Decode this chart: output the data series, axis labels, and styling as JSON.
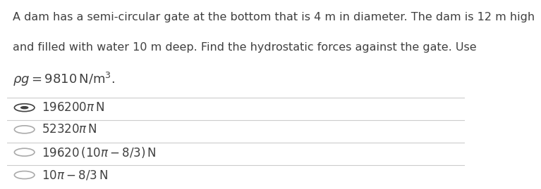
{
  "question_line1": "A dam has a semi-circular gate at the bottom that is 4 m in diameter. The dam is 12 m high",
  "question_line2": "and filled with water 10 m deep. Find the hydrostatic forces against the gate. Use",
  "options": [
    {
      "selected": true
    },
    {
      "selected": false
    },
    {
      "selected": false
    },
    {
      "selected": false
    }
  ],
  "bg_color": "#ffffff",
  "text_color": "#404040",
  "line_color": "#cccccc",
  "font_size_question": 11.5,
  "font_size_options": 12.0,
  "font_size_math": 13.0,
  "selected_color": "#404040",
  "unselected_color": "#aaaaaa"
}
